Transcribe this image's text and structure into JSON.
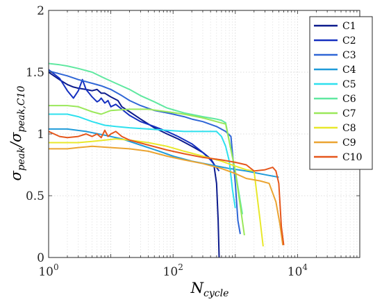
{
  "chart_data": {
    "type": "line",
    "title": "",
    "xlabel_base": "N",
    "xlabel_sub": "cycle",
    "ylabel_base": "σ",
    "ylabel_sub1": "peak",
    "ylabel_sep": "/",
    "ylabel_sub2": "peak,C10",
    "x_scale": "log",
    "xlim": [
      1,
      100000
    ],
    "ylim": [
      0,
      2
    ],
    "grid": "log-x minor dotted, y major dotted",
    "legend_position": "top-right",
    "x_ticks": [
      {
        "value": 1,
        "base": "10",
        "exp": "0"
      },
      {
        "value": 100,
        "base": "10",
        "exp": "2"
      },
      {
        "value": 10000,
        "base": "10",
        "exp": "4"
      }
    ],
    "y_ticks": [
      {
        "value": 0,
        "label": "0"
      },
      {
        "value": 0.5,
        "label": "0.5"
      },
      {
        "value": 1,
        "label": "1"
      },
      {
        "value": 1.5,
        "label": "1.5"
      },
      {
        "value": 2,
        "label": "2"
      }
    ],
    "series": [
      {
        "name": "C1",
        "color": "#0b1a8c",
        "points": [
          [
            1,
            1.5
          ],
          [
            1.3,
            1.46
          ],
          [
            1.6,
            1.43
          ],
          [
            2,
            1.4
          ],
          [
            2.5,
            1.38
          ],
          [
            3,
            1.37
          ],
          [
            4,
            1.36
          ],
          [
            5,
            1.35
          ],
          [
            6,
            1.36
          ],
          [
            7,
            1.33
          ],
          [
            8,
            1.33
          ],
          [
            10,
            1.3
          ],
          [
            13,
            1.27
          ],
          [
            15,
            1.22
          ],
          [
            20,
            1.18
          ],
          [
            30,
            1.12
          ],
          [
            50,
            1.05
          ],
          [
            80,
            1.0
          ],
          [
            120,
            0.96
          ],
          [
            200,
            0.9
          ],
          [
            300,
            0.85
          ],
          [
            400,
            0.8
          ],
          [
            450,
            0.76
          ],
          [
            500,
            0.6
          ],
          [
            530,
            0.3
          ],
          [
            550,
            0.0
          ]
        ]
      },
      {
        "name": "C2",
        "color": "#1530c0",
        "points": [
          [
            1,
            1.52
          ],
          [
            1.5,
            1.45
          ],
          [
            2,
            1.35
          ],
          [
            2.5,
            1.29
          ],
          [
            3,
            1.35
          ],
          [
            3.5,
            1.44
          ],
          [
            4,
            1.36
          ],
          [
            5,
            1.3
          ],
          [
            6,
            1.26
          ],
          [
            6.5,
            1.27
          ],
          [
            7,
            1.29
          ],
          [
            8,
            1.25
          ],
          [
            9,
            1.27
          ],
          [
            10,
            1.22
          ],
          [
            12,
            1.24
          ],
          [
            15,
            1.2
          ],
          [
            20,
            1.15
          ],
          [
            30,
            1.1
          ],
          [
            50,
            1.06
          ],
          [
            80,
            1.02
          ],
          [
            120,
            0.98
          ],
          [
            200,
            0.92
          ],
          [
            300,
            0.85
          ],
          [
            400,
            0.79
          ],
          [
            480,
            0.74
          ],
          [
            550,
            0.7
          ]
        ]
      },
      {
        "name": "C3",
        "color": "#2f66d6",
        "points": [
          [
            1,
            1.51
          ],
          [
            2,
            1.47
          ],
          [
            3,
            1.44
          ],
          [
            5,
            1.41
          ],
          [
            7,
            1.39
          ],
          [
            10,
            1.36
          ],
          [
            15,
            1.31
          ],
          [
            20,
            1.27
          ],
          [
            30,
            1.23
          ],
          [
            50,
            1.19
          ],
          [
            80,
            1.17
          ],
          [
            100,
            1.16
          ],
          [
            150,
            1.14
          ],
          [
            200,
            1.12
          ],
          [
            300,
            1.1
          ],
          [
            500,
            1.06
          ],
          [
            700,
            1.02
          ],
          [
            850,
            0.98
          ],
          [
            1000,
            0.6
          ],
          [
            1100,
            0.3
          ],
          [
            1200,
            0.19
          ]
        ]
      },
      {
        "name": "C4",
        "color": "#1f9bd9",
        "points": [
          [
            1,
            1.04
          ],
          [
            2,
            1.04
          ],
          [
            4,
            1.02
          ],
          [
            8,
            0.99
          ],
          [
            15,
            0.96
          ],
          [
            30,
            0.91
          ],
          [
            60,
            0.86
          ],
          [
            100,
            0.82
          ],
          [
            200,
            0.78
          ],
          [
            400,
            0.75
          ],
          [
            800,
            0.72
          ],
          [
            1500,
            0.7
          ],
          [
            3000,
            0.67
          ],
          [
            5000,
            0.65
          ]
        ]
      },
      {
        "name": "C5",
        "color": "#2de0ee",
        "points": [
          [
            1,
            1.16
          ],
          [
            2,
            1.16
          ],
          [
            3,
            1.14
          ],
          [
            5,
            1.1
          ],
          [
            8,
            1.07
          ],
          [
            12,
            1.06
          ],
          [
            20,
            1.05
          ],
          [
            40,
            1.04
          ],
          [
            80,
            1.03
          ],
          [
            150,
            1.02
          ],
          [
            300,
            1.02
          ],
          [
            500,
            1.02
          ],
          [
            600,
            0.98
          ],
          [
            700,
            0.9
          ],
          [
            800,
            0.78
          ],
          [
            900,
            0.55
          ],
          [
            1000,
            0.4
          ]
        ]
      },
      {
        "name": "C6",
        "color": "#5fe8a0",
        "points": [
          [
            1,
            1.57
          ],
          [
            1.5,
            1.56
          ],
          [
            2,
            1.55
          ],
          [
            3,
            1.53
          ],
          [
            5,
            1.5
          ],
          [
            8,
            1.45
          ],
          [
            12,
            1.41
          ],
          [
            20,
            1.36
          ],
          [
            30,
            1.31
          ],
          [
            50,
            1.26
          ],
          [
            80,
            1.21
          ],
          [
            150,
            1.17
          ],
          [
            300,
            1.14
          ],
          [
            500,
            1.12
          ],
          [
            600,
            1.11
          ],
          [
            700,
            1.09
          ],
          [
            1000,
            0.7
          ],
          [
            1300,
            0.35
          ]
        ]
      },
      {
        "name": "C7",
        "color": "#9ae85a",
        "points": [
          [
            1,
            1.23
          ],
          [
            2,
            1.23
          ],
          [
            3,
            1.22
          ],
          [
            5,
            1.18
          ],
          [
            7,
            1.16
          ],
          [
            10,
            1.19
          ],
          [
            20,
            1.2
          ],
          [
            40,
            1.2
          ],
          [
            80,
            1.18
          ],
          [
            150,
            1.16
          ],
          [
            300,
            1.13
          ],
          [
            500,
            1.1
          ],
          [
            700,
            1.08
          ],
          [
            1000,
            0.7
          ],
          [
            1400,
            0.18
          ]
        ]
      },
      {
        "name": "C8",
        "color": "#e8e82a",
        "points": [
          [
            1,
            0.93
          ],
          [
            3,
            0.93
          ],
          [
            5,
            0.94
          ],
          [
            8,
            0.95
          ],
          [
            12,
            0.96
          ],
          [
            20,
            0.95
          ],
          [
            40,
            0.93
          ],
          [
            80,
            0.9
          ],
          [
            150,
            0.86
          ],
          [
            300,
            0.82
          ],
          [
            600,
            0.78
          ],
          [
            1000,
            0.74
          ],
          [
            1500,
            0.71
          ],
          [
            2000,
            0.7
          ],
          [
            2500,
            0.3
          ],
          [
            2800,
            0.09
          ]
        ]
      },
      {
        "name": "C9",
        "color": "#eba431",
        "points": [
          [
            1,
            0.88
          ],
          [
            2,
            0.88
          ],
          [
            3,
            0.89
          ],
          [
            5,
            0.9
          ],
          [
            10,
            0.89
          ],
          [
            20,
            0.88
          ],
          [
            40,
            0.86
          ],
          [
            80,
            0.82
          ],
          [
            150,
            0.79
          ],
          [
            300,
            0.76
          ],
          [
            600,
            0.72
          ],
          [
            1000,
            0.68
          ],
          [
            1500,
            0.64
          ],
          [
            2500,
            0.62
          ],
          [
            3500,
            0.6
          ],
          [
            4500,
            0.45
          ],
          [
            5200,
            0.27
          ],
          [
            5800,
            0.1
          ]
        ]
      },
      {
        "name": "C10",
        "color": "#e5561b",
        "points": [
          [
            1,
            1.02
          ],
          [
            1.5,
            0.98
          ],
          [
            2,
            0.97
          ],
          [
            3,
            0.98
          ],
          [
            4,
            1.0
          ],
          [
            5,
            0.98
          ],
          [
            6,
            1.0
          ],
          [
            7,
            0.97
          ],
          [
            8,
            1.03
          ],
          [
            9,
            0.98
          ],
          [
            10,
            1.0
          ],
          [
            12,
            1.02
          ],
          [
            15,
            0.98
          ],
          [
            20,
            0.95
          ],
          [
            40,
            0.91
          ],
          [
            80,
            0.87
          ],
          [
            150,
            0.84
          ],
          [
            300,
            0.81
          ],
          [
            600,
            0.79
          ],
          [
            1000,
            0.77
          ],
          [
            1500,
            0.75
          ],
          [
            2000,
            0.7
          ],
          [
            3000,
            0.71
          ],
          [
            4000,
            0.73
          ],
          [
            4500,
            0.7
          ],
          [
            5000,
            0.6
          ],
          [
            5500,
            0.25
          ],
          [
            6000,
            0.1
          ]
        ]
      }
    ]
  }
}
